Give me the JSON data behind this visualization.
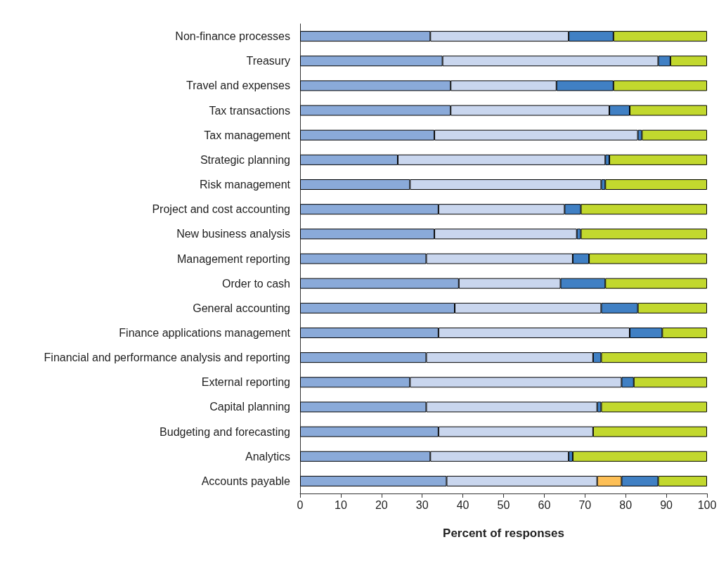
{
  "chart_data": {
    "type": "bar",
    "orientation": "horizontal",
    "stacked": true,
    "xlabel": "Percent of responses",
    "xlim": [
      0,
      100
    ],
    "xticks": [
      0,
      10,
      20,
      30,
      40,
      50,
      60,
      70,
      80,
      90,
      100
    ],
    "grid": false,
    "categories": [
      "Non-finance processes",
      "Treasury",
      "Travel and expenses",
      "Tax transactions",
      "Tax management",
      "Strategic planning",
      "Risk management",
      "Project and cost accounting",
      "New business analysis",
      "Management reporting",
      "Order to cash",
      "General accounting",
      "Finance applications management",
      "Financial and performance analysis and reporting",
      "External reporting",
      "Capital planning",
      "Budgeting and forecasting",
      "Analytics",
      "Accounts payable"
    ],
    "series": [
      {
        "color": "#8aaad9",
        "values": [
          32,
          35,
          37,
          37,
          33,
          24,
          27,
          34,
          33,
          31,
          39,
          38,
          34,
          31,
          27,
          31,
          34,
          32,
          36
        ]
      },
      {
        "color": "#c9d6ee",
        "values": [
          34,
          53,
          26,
          39,
          50,
          51,
          47,
          31,
          35,
          36,
          25,
          36,
          47,
          41,
          52,
          42,
          38,
          34,
          37
        ]
      },
      {
        "color": "#fdbf56",
        "values": [
          null,
          null,
          null,
          null,
          null,
          null,
          null,
          null,
          null,
          null,
          null,
          null,
          null,
          null,
          null,
          null,
          null,
          null,
          6
        ]
      },
      {
        "color": "#4080c4",
        "values": [
          11,
          3,
          14,
          5,
          1,
          1,
          1,
          4,
          1,
          4,
          11,
          9,
          8,
          2,
          3,
          1,
          null,
          1,
          9
        ]
      },
      {
        "color": "#c2d82e",
        "values": [
          23,
          9,
          23,
          19,
          16,
          24,
          25,
          31,
          31,
          29,
          25,
          17,
          11,
          26,
          18,
          26,
          28,
          33,
          12
        ]
      }
    ]
  }
}
